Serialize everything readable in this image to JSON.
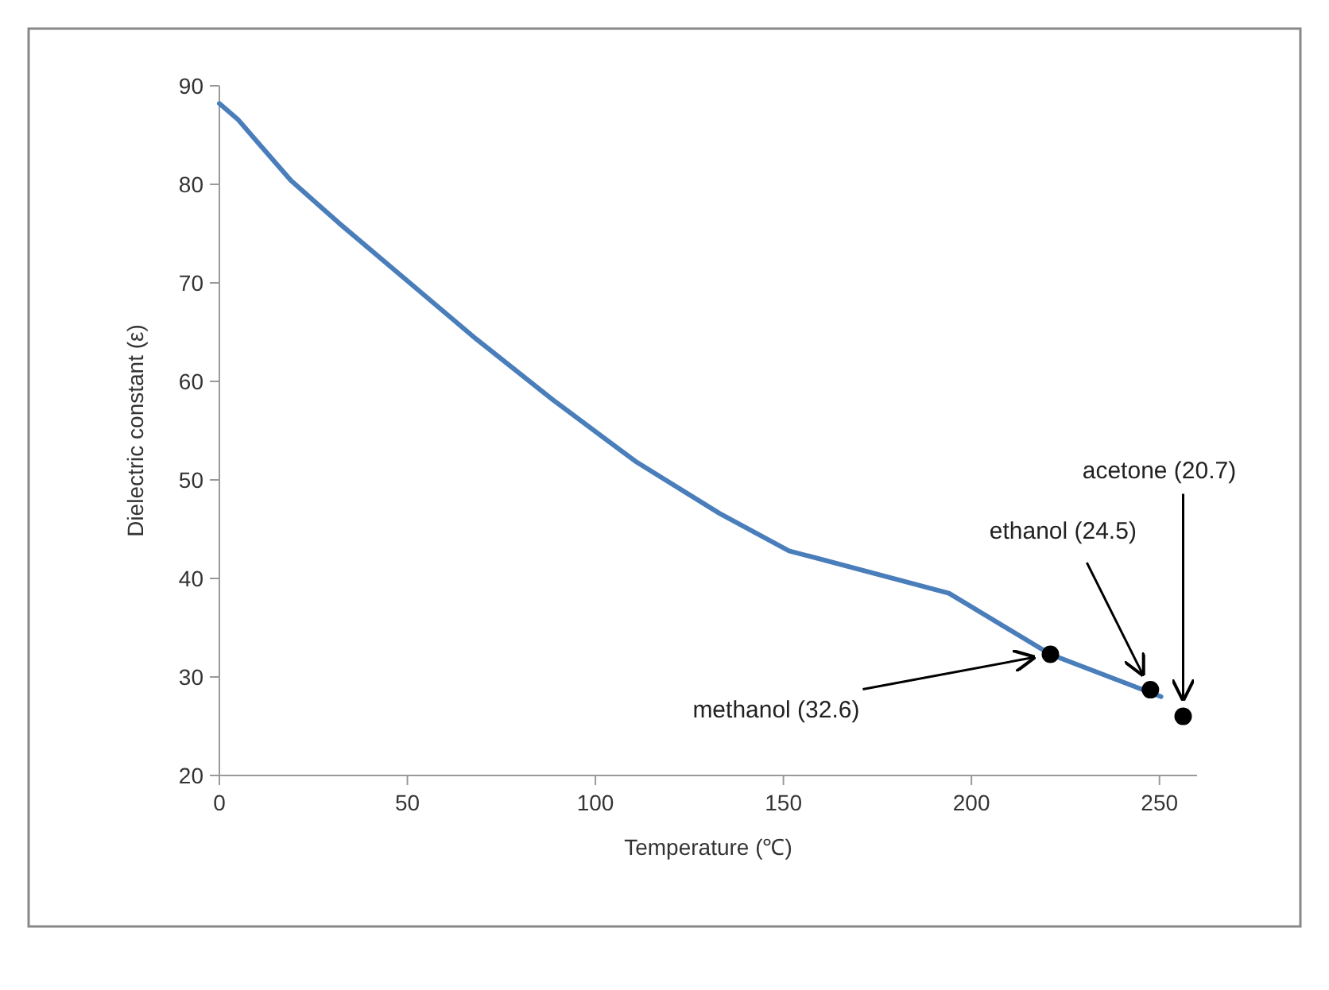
{
  "chart_data": {
    "type": "line",
    "xlabel": "Temperature (℃)",
    "ylabel": "Dielectric constant (ε)",
    "xlim": [
      0,
      260
    ],
    "xticks": [
      0,
      50,
      100,
      150,
      200,
      250
    ],
    "ylim": [
      20,
      90
    ],
    "yticks": [
      20,
      30,
      40,
      50,
      60,
      70,
      80,
      90
    ],
    "grid": false,
    "series": [
      {
        "color": "#4a7ebb",
        "marker": "none",
        "x": [
          0,
          4.9,
          9.2,
          19,
          31.7,
          50,
          68.3,
          88.8,
          110.6,
          133,
          151.5,
          194,
          221,
          250.4
        ],
        "values": [
          88.2,
          86.6,
          84.7,
          80.4,
          76.1,
          70.2,
          64.3,
          58.1,
          51.9,
          46.6,
          42.8,
          38.5,
          32.3,
          28
        ]
      },
      {
        "type": "scatter",
        "color": "#000000",
        "marker": "circle",
        "x": [
          221,
          247.6,
          256.3
        ],
        "values": [
          32.3,
          28.7,
          26
        ]
      }
    ],
    "annotations": [
      "methanol (32.6)",
      "ethanol (24.5)",
      "acetone (20.7)"
    ]
  }
}
